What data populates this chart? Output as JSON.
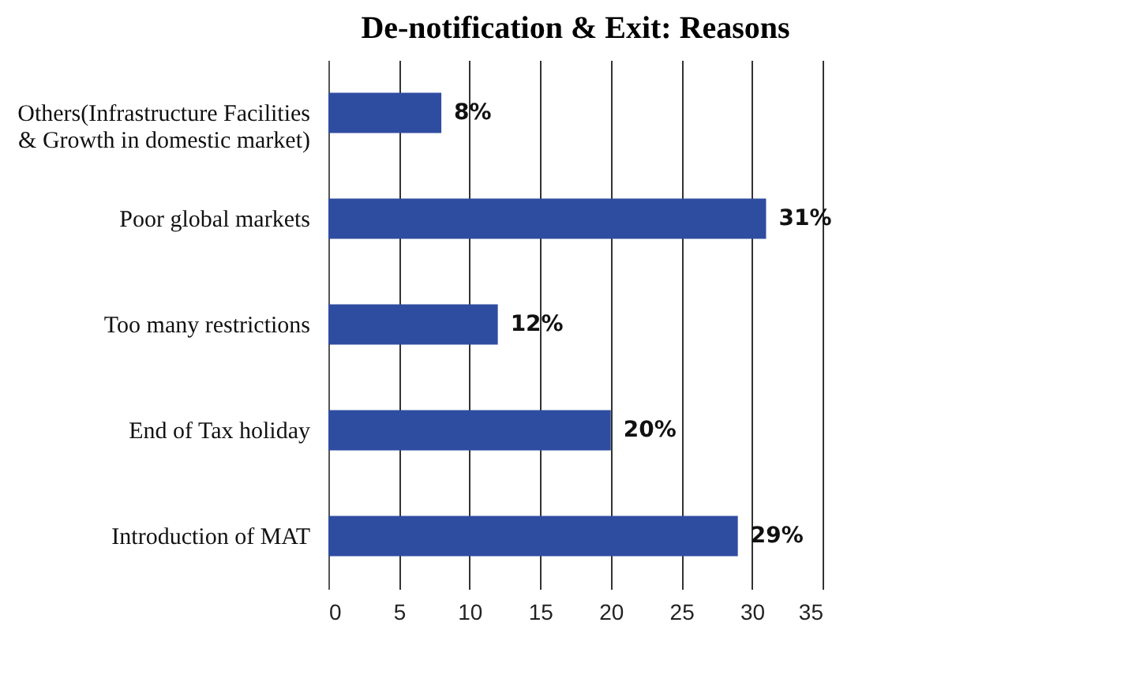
{
  "chart_data": {
    "type": "bar",
    "orientation": "horizontal",
    "title": "De-notification & Exit: Reasons",
    "categories": [
      "Others(Infrastructure Facilities\n& Growth in domestic market)",
      "Poor global markets",
      "Too many restrictions",
      "End of Tax holiday",
      "Introduction of MAT"
    ],
    "values": [
      8,
      31,
      12,
      20,
      29
    ],
    "value_labels": [
      "8%",
      "31%",
      "12%",
      "20%",
      "29%"
    ],
    "color": "#2f4da0",
    "xlim": [
      0,
      35
    ],
    "xticks": [
      0,
      5,
      10,
      15,
      20,
      25,
      30,
      35
    ],
    "grid": "x"
  }
}
